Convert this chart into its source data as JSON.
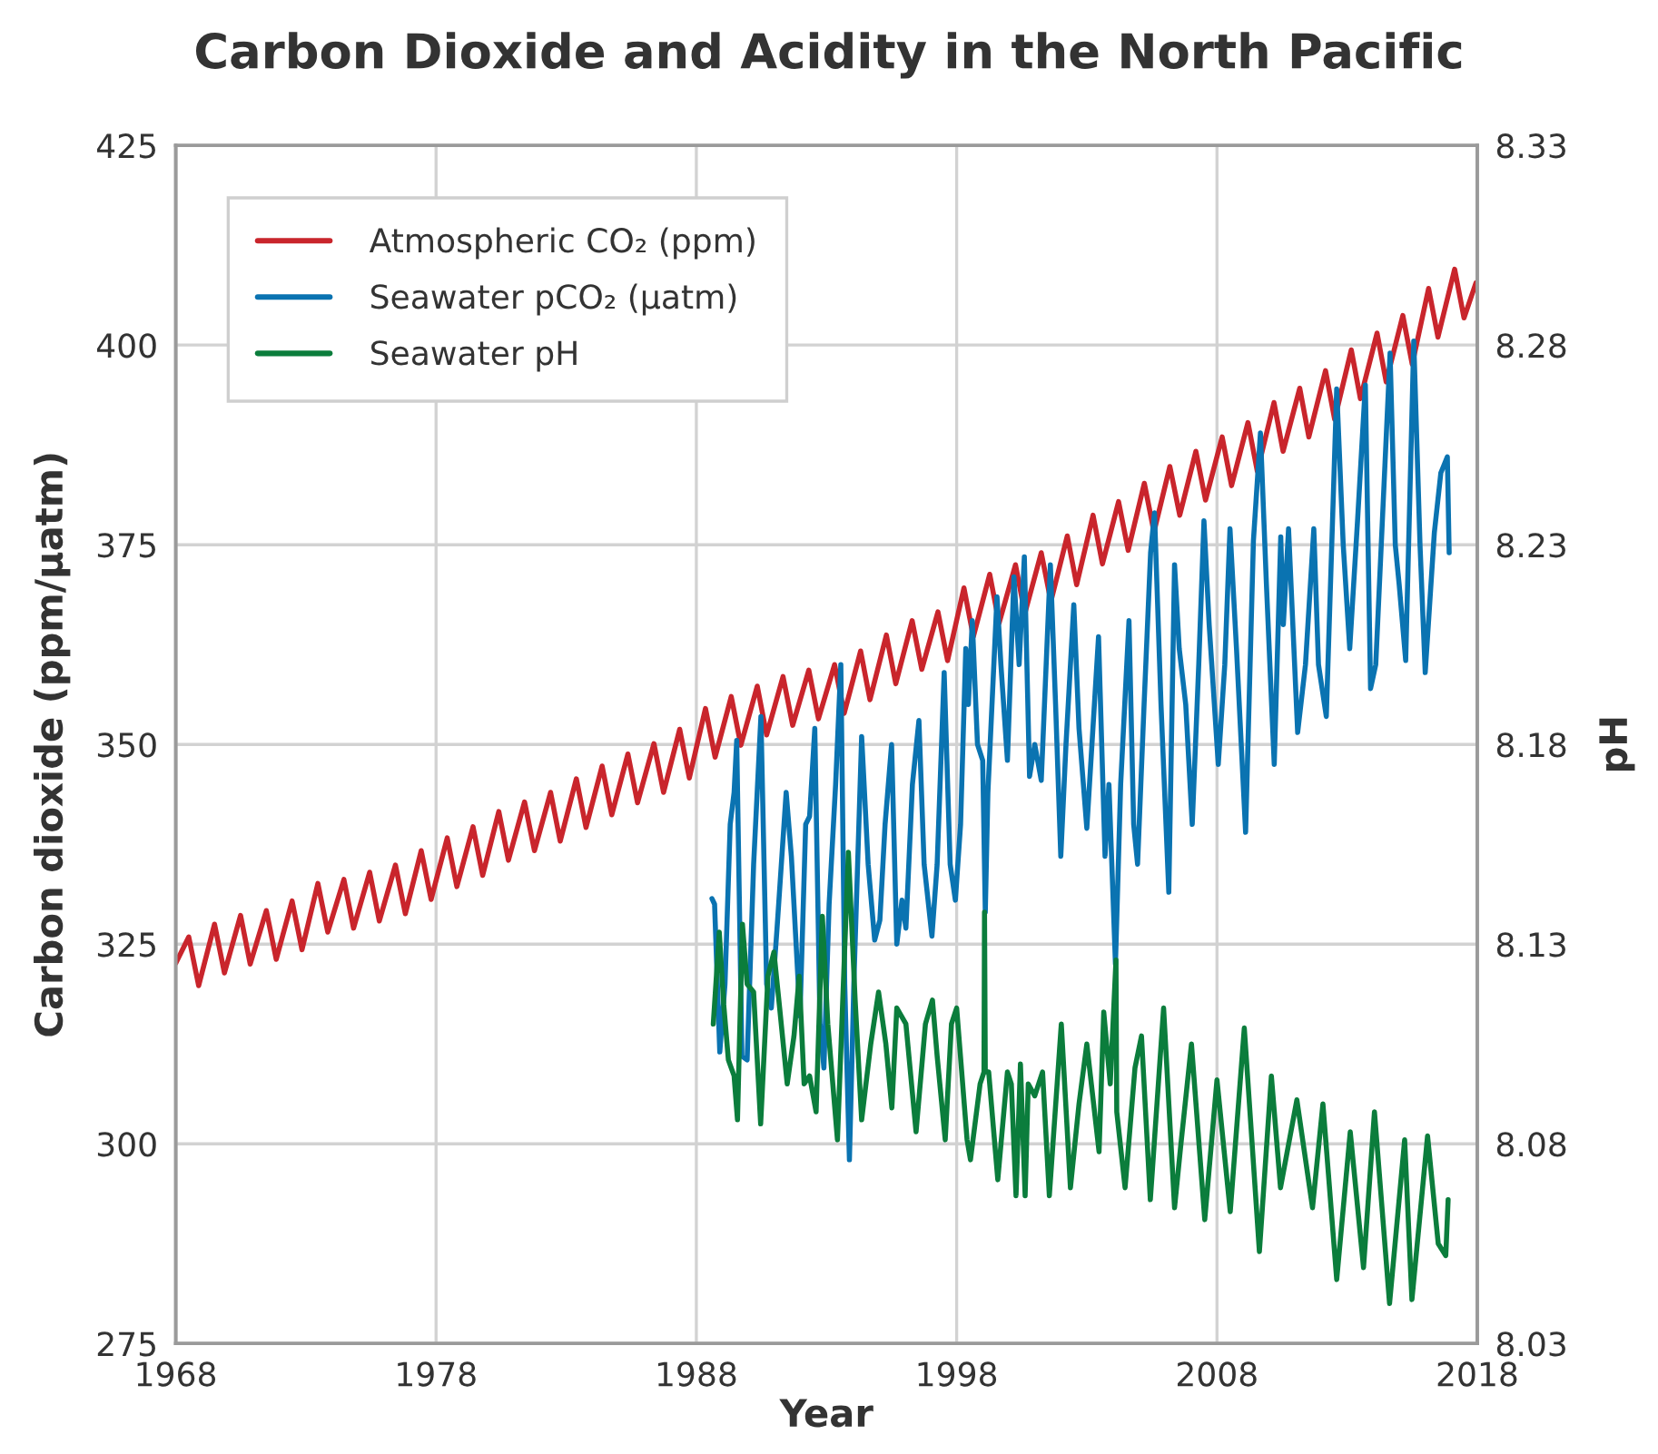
{
  "chart_data": {
    "type": "line",
    "title": "Carbon Dioxide and Acidity in the North Pacific",
    "xlabel": "Year",
    "ylabel": "Carbon dioxide (ppm/µatm)",
    "y2label": "pH",
    "xlim": [
      1968,
      2018
    ],
    "xticks": [
      1968,
      1978,
      1988,
      1998,
      2008,
      2018
    ],
    "ylim": [
      275,
      425
    ],
    "yticks": [
      275,
      300,
      325,
      350,
      375,
      400,
      425
    ],
    "y2lim": [
      8.03,
      8.33
    ],
    "y2ticks": [
      8.03,
      8.08,
      8.13,
      8.18,
      8.23,
      8.28,
      8.33
    ],
    "grid": true,
    "legend": "top left",
    "series": [
      {
        "name": "Atmospheric CO₂ (ppm)",
        "color": "#c9252c",
        "x": [
          1968.0,
          1968.5,
          1968.88,
          1969.49,
          1969.87,
          1970.49,
          1970.86,
          1971.48,
          1971.86,
          1972.47,
          1972.85,
          1973.46,
          1973.84,
          1974.46,
          1974.83,
          1975.45,
          1975.82,
          1976.44,
          1976.82,
          1977.43,
          1977.81,
          1978.43,
          1978.8,
          1979.42,
          1979.79,
          1980.41,
          1980.78,
          1981.4,
          1981.78,
          1982.4,
          1982.77,
          1983.39,
          1983.76,
          1984.38,
          1984.75,
          1985.37,
          1985.74,
          1986.37,
          1986.74,
          1987.36,
          1987.73,
          1988.35,
          1988.72,
          1989.34,
          1989.71,
          1990.34,
          1990.7,
          1991.33,
          1991.7,
          1992.32,
          1992.69,
          1993.31,
          1993.68,
          1994.31,
          1994.67,
          1995.3,
          1995.66,
          1996.29,
          1996.66,
          1997.28,
          1997.65,
          1998.28,
          1998.64,
          1999.27,
          1999.63,
          2000.26,
          2000.62,
          2001.25,
          2001.62,
          2002.25,
          2002.61,
          2003.24,
          2003.6,
          2004.22,
          2004.59,
          2005.21,
          2005.58,
          2006.19,
          2006.57,
          2007.19,
          2007.56,
          2008.2,
          2008.56,
          2009.19,
          2009.55,
          2010.19,
          2010.54,
          2011.18,
          2011.53,
          2012.17,
          2012.52,
          2013.16,
          2013.51,
          2014.15,
          2014.5,
          2015.14,
          2015.5,
          2016.13,
          2016.49,
          2017.13,
          2017.49,
          2017.95
        ],
        "values": [
          322.6,
          325.9,
          319.8,
          327.5,
          321.4,
          328.6,
          322.5,
          329.2,
          323.1,
          330.4,
          324.3,
          332.6,
          326.5,
          333.1,
          327.0,
          334.0,
          327.9,
          334.9,
          328.8,
          336.7,
          330.6,
          338.3,
          332.2,
          339.7,
          333.6,
          341.6,
          335.5,
          342.8,
          336.7,
          344.0,
          337.9,
          345.7,
          339.6,
          347.3,
          341.2,
          348.8,
          342.7,
          350.1,
          344.0,
          351.9,
          345.8,
          354.5,
          348.4,
          356.0,
          349.9,
          357.3,
          351.2,
          358.5,
          352.4,
          359.3,
          353.2,
          360.0,
          353.9,
          361.7,
          355.6,
          363.7,
          357.6,
          365.5,
          359.4,
          366.6,
          360.5,
          369.6,
          363.5,
          371.3,
          365.2,
          372.5,
          366.4,
          374.0,
          367.9,
          376.1,
          370.0,
          378.7,
          372.6,
          380.4,
          374.3,
          382.7,
          376.6,
          384.8,
          378.7,
          386.7,
          380.6,
          388.5,
          382.4,
          390.3,
          384.2,
          392.8,
          386.7,
          394.6,
          388.5,
          396.8,
          390.7,
          399.4,
          393.3,
          401.5,
          395.4,
          403.7,
          397.6,
          407.1,
          401.0,
          409.5,
          403.4,
          407.8
        ]
      },
      {
        "name": "Seawater pCO₂ (µatm)",
        "color": "#0a73b1",
        "x": [
          1988.6,
          1988.7,
          1988.9,
          1989.1,
          1989.3,
          1989.45,
          1989.55,
          1989.75,
          1989.95,
          1990.2,
          1990.48,
          1990.7,
          1990.88,
          1991.1,
          1991.45,
          1991.65,
          1991.98,
          1992.2,
          1992.35,
          1992.55,
          1992.75,
          1992.9,
          1993.1,
          1993.35,
          1993.55,
          1993.7,
          1993.88,
          1994.05,
          1994.35,
          1994.6,
          1994.85,
          1995.05,
          1995.25,
          1995.5,
          1995.7,
          1995.9,
          1996.05,
          1996.3,
          1996.55,
          1996.75,
          1997.05,
          1997.25,
          1997.52,
          1997.75,
          1997.95,
          1998.15,
          1998.35,
          1998.45,
          1998.6,
          1998.8,
          1999.0,
          1999.1,
          1999.2,
          1999.55,
          1999.7,
          1999.95,
          2000.2,
          2000.4,
          2000.6,
          2000.8,
          2001.0,
          2001.25,
          2001.6,
          2001.8,
          2002.0,
          2002.2,
          2002.5,
          2002.7,
          2003.0,
          2003.45,
          2003.7,
          2003.85,
          2004.1,
          2004.3,
          2004.62,
          2004.8,
          2004.95,
          2005.2,
          2005.45,
          2005.6,
          2005.85,
          2006.15,
          2006.37,
          2006.55,
          2006.8,
          2007.05,
          2007.3,
          2007.5,
          2007.7,
          2008.05,
          2008.3,
          2008.5,
          2008.75,
          2009.1,
          2009.4,
          2009.67,
          2009.9,
          2010.2,
          2010.45,
          2010.55,
          2010.75,
          2011.1,
          2011.4,
          2011.72,
          2011.9,
          2012.2,
          2012.6,
          2012.85,
          2013.1,
          2013.4,
          2013.7,
          2013.9,
          2014.1,
          2014.65,
          2014.85,
          2015.0,
          2015.25,
          2015.56,
          2015.8,
          2016.0,
          2016.35,
          2016.6,
          2016.85,
          2016.92
        ],
        "values": [
          330.7,
          330.0,
          311.5,
          320,
          340,
          344,
          350.5,
          311,
          310.5,
          335,
          353.5,
          320,
          317,
          327,
          344,
          336,
          316,
          340,
          341,
          352,
          315,
          309.5,
          330,
          345,
          360,
          320,
          298,
          320,
          351,
          335,
          325.5,
          328,
          340,
          350,
          325,
          330.5,
          327,
          345,
          353,
          335,
          326,
          335,
          359,
          335,
          330.5,
          340,
          362,
          355,
          365.5,
          350,
          348,
          329,
          344,
          368.5,
          360,
          348,
          371,
          360,
          373.5,
          346,
          350,
          345.5,
          372.5,
          355,
          336,
          350,
          367.5,
          352,
          339.5,
          363.5,
          336,
          345,
          322.5,
          345,
          365.5,
          340,
          335,
          355,
          374,
          379,
          355,
          331.5,
          372.5,
          362,
          355,
          340,
          360,
          378,
          365,
          347.5,
          360,
          377,
          362,
          339,
          375.5,
          389,
          370,
          347.5,
          376,
          365,
          377,
          351.5,
          360,
          377,
          360,
          353.5,
          394.5,
          375,
          362,
          378,
          395,
          357,
          360,
          399,
          375,
          370,
          360.5,
          400.5,
          375,
          359,
          376.5,
          384,
          386,
          374
        ]
      },
      {
        "name": "Seawater pH",
        "color": "#0b7d3c",
        "axis": "y2",
        "x": [
          1988.65,
          1988.88,
          1989.05,
          1989.23,
          1989.45,
          1989.58,
          1989.77,
          1989.95,
          1990.2,
          1990.47,
          1990.75,
          1990.98,
          1991.2,
          1991.49,
          1991.75,
          1991.95,
          1992.14,
          1992.35,
          1992.6,
          1992.84,
          1993.05,
          1993.42,
          1993.84,
          1994.1,
          1994.35,
          1994.7,
          1995.0,
          1995.28,
          1995.51,
          1995.7,
          1996.05,
          1996.44,
          1996.8,
          1997.07,
          1997.25,
          1997.56,
          1997.8,
          1998.0,
          1998.4,
          1998.53,
          1998.9,
          1999.05,
          1999.07,
          1999.1,
          1999.23,
          1999.58,
          1999.95,
          2000.1,
          2000.28,
          2000.45,
          2000.63,
          2000.75,
          2001.0,
          2001.3,
          2001.56,
          2002.02,
          2002.37,
          2002.7,
          2003.0,
          2003.47,
          2003.65,
          2003.9,
          2004.12,
          2004.15,
          2004.47,
          2004.85,
          2005.1,
          2005.44,
          2005.95,
          2006.37,
          2006.6,
          2007.02,
          2007.53,
          2008.0,
          2008.51,
          2009.05,
          2009.63,
          2010.09,
          2010.44,
          2011.07,
          2011.67,
          2012.07,
          2012.6,
          2013.12,
          2013.63,
          2014.05,
          2014.63,
          2015.21,
          2015.49,
          2016.09,
          2016.5,
          2016.79,
          2016.88
        ],
        "values": [
          8.11,
          8.133,
          8.115,
          8.101,
          8.097,
          8.086,
          8.135,
          8.12,
          8.118,
          8.085,
          8.122,
          8.128,
          8.114,
          8.095,
          8.107,
          8.122,
          8.095,
          8.097,
          8.088,
          8.137,
          8.11,
          8.081,
          8.153,
          8.116,
          8.086,
          8.105,
          8.118,
          8.105,
          8.089,
          8.114,
          8.11,
          8.083,
          8.11,
          8.116,
          8.102,
          8.081,
          8.11,
          8.114,
          8.081,
          8.076,
          8.095,
          8.098,
          8.138,
          8.098,
          8.098,
          8.071,
          8.098,
          8.095,
          8.067,
          8.1,
          8.067,
          8.095,
          8.092,
          8.098,
          8.067,
          8.11,
          8.069,
          8.09,
          8.105,
          8.078,
          8.113,
          8.095,
          8.126,
          8.088,
          8.069,
          8.099,
          8.107,
          8.066,
          8.114,
          8.064,
          8.079,
          8.105,
          8.061,
          8.096,
          8.063,
          8.109,
          8.053,
          8.097,
          8.069,
          8.091,
          8.064,
          8.09,
          8.046,
          8.083,
          8.049,
          8.088,
          8.04,
          8.081,
          8.041,
          8.082,
          8.055,
          8.052,
          8.066
        ]
      }
    ]
  }
}
